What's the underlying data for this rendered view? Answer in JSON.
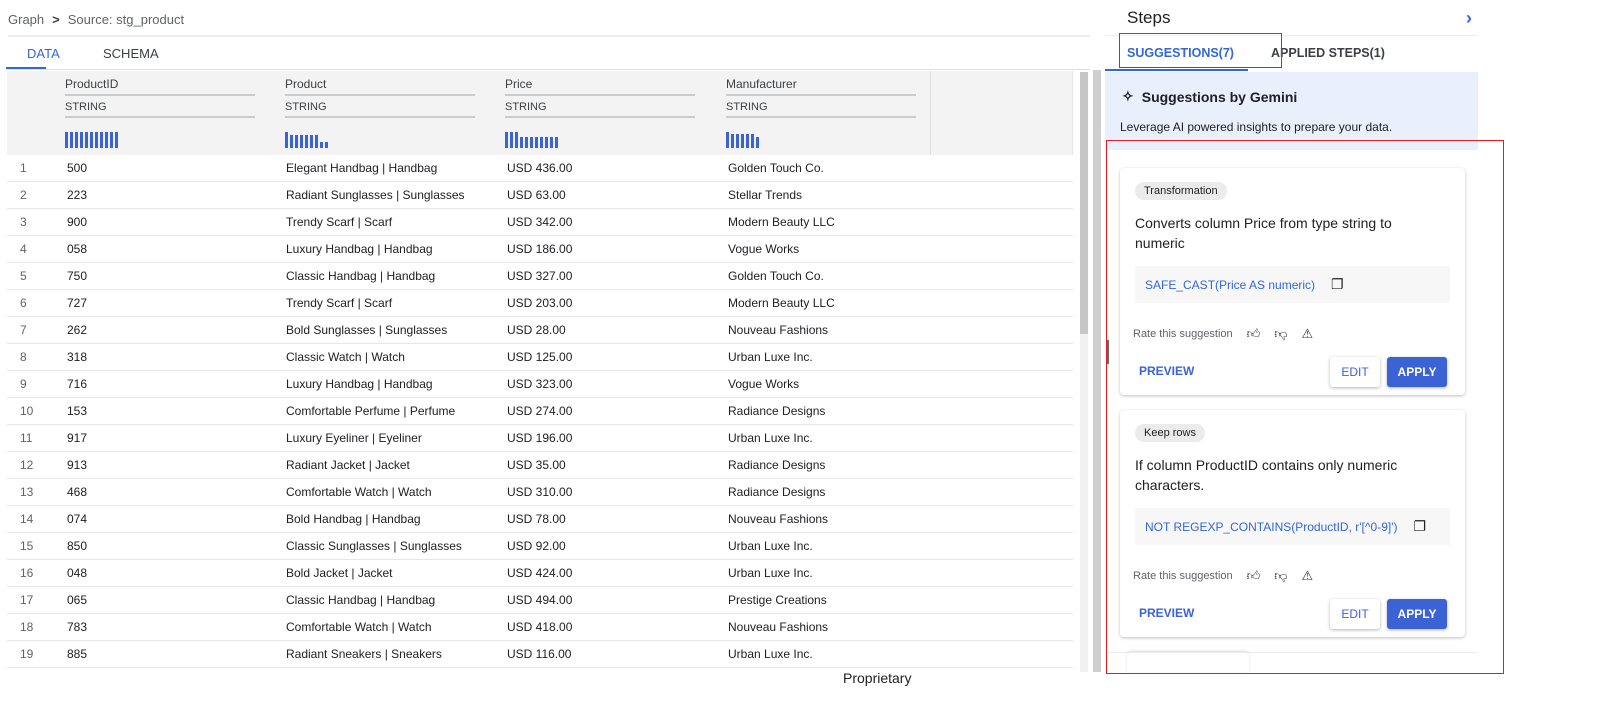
{
  "breadcrumb": {
    "root": "Graph",
    "current": "Source: stg_product"
  },
  "tabs": [
    {
      "label": "DATA",
      "active": true
    },
    {
      "label": "SCHEMA",
      "active": false
    }
  ],
  "columns": [
    {
      "name": "ProductID",
      "type": "STRING",
      "histogram": [
        1,
        1,
        1,
        1,
        1,
        1,
        1,
        1,
        1,
        1,
        1
      ]
    },
    {
      "name": "Product",
      "type": "STRING",
      "histogram": [
        1,
        0.8,
        0.8,
        0.8,
        0.8,
        0.8,
        0.8,
        0.4,
        0.4
      ]
    },
    {
      "name": "Price",
      "type": "STRING",
      "histogram": [
        1,
        1,
        1,
        0.7,
        0.7,
        0.7,
        0.7,
        0.7,
        0.7,
        0.7,
        0.7
      ]
    },
    {
      "name": "Manufacturer",
      "type": "STRING",
      "histogram": [
        1,
        0.85,
        0.85,
        0.85,
        0.85,
        0.85,
        0.7
      ]
    }
  ],
  "rows": [
    [
      "1",
      "500",
      "Elegant Handbag | Handbag",
      "USD 436.00",
      "Golden Touch Co."
    ],
    [
      "2",
      "223",
      "Radiant Sunglasses | Sunglasses",
      "USD 63.00",
      "Stellar Trends"
    ],
    [
      "3",
      "900",
      "Trendy Scarf | Scarf",
      "USD 342.00",
      "Modern Beauty LLC"
    ],
    [
      "4",
      "058",
      "Luxury Handbag | Handbag",
      "USD 186.00",
      "Vogue Works"
    ],
    [
      "5",
      "750",
      "Classic Handbag | Handbag",
      "USD 327.00",
      "Golden Touch Co."
    ],
    [
      "6",
      "727",
      "Trendy Scarf | Scarf",
      "USD 203.00",
      "Modern Beauty LLC"
    ],
    [
      "7",
      "262",
      "Bold Sunglasses | Sunglasses",
      "USD 28.00",
      "Nouveau Fashions"
    ],
    [
      "8",
      "318",
      "Classic Watch | Watch",
      "USD 125.00",
      "Urban Luxe Inc."
    ],
    [
      "9",
      "716",
      "Luxury Handbag | Handbag",
      "USD 323.00",
      "Vogue Works"
    ],
    [
      "10",
      "153",
      "Comfortable Perfume | Perfume",
      "USD 274.00",
      "Radiance Designs"
    ],
    [
      "11",
      "917",
      "Luxury Eyeliner | Eyeliner",
      "USD 196.00",
      "Urban Luxe Inc."
    ],
    [
      "12",
      "913",
      "Radiant Jacket | Jacket",
      "USD 35.00",
      "Radiance Designs"
    ],
    [
      "13",
      "468",
      "Comfortable Watch | Watch",
      "USD 310.00",
      "Radiance Designs"
    ],
    [
      "14",
      "074",
      "Bold Handbag | Handbag",
      "USD 78.00",
      "Nouveau Fashions"
    ],
    [
      "15",
      "850",
      "Classic Sunglasses | Sunglasses",
      "USD 92.00",
      "Urban Luxe Inc."
    ],
    [
      "16",
      "048",
      "Bold Jacket | Jacket",
      "USD 424.00",
      "Urban Luxe Inc."
    ],
    [
      "17",
      "065",
      "Classic Handbag | Handbag",
      "USD 494.00",
      "Prestige Creations"
    ],
    [
      "18",
      "783",
      "Comfortable Watch | Watch",
      "USD 418.00",
      "Nouveau Fashions"
    ],
    [
      "19",
      "885",
      "Radiant Sneakers | Sneakers",
      "USD 116.00",
      "Urban Luxe Inc."
    ]
  ],
  "steps": {
    "title": "Steps",
    "tabs": [
      {
        "label": "SUGGESTIONS(7)",
        "active": true
      },
      {
        "label": "APPLIED STEPS(1)",
        "active": false
      }
    ],
    "gemini_title": "Suggestions by Gemini",
    "gemini_subtitle": "Leverage AI powered insights to prepare your data.",
    "cards": [
      {
        "chip": "Transformation",
        "description": "Converts column Price from type string to numeric",
        "code": "SAFE_CAST(Price AS numeric)",
        "rate_label": "Rate this suggestion",
        "preview": "PREVIEW",
        "edit": "EDIT",
        "apply": "APPLY"
      },
      {
        "chip": "Keep rows",
        "description": "If column ProductID contains only numeric characters.",
        "code": "NOT REGEXP_CONTAINS(ProductID, r'[^0-9]')",
        "rate_label": "Rate this suggestion",
        "preview": "PREVIEW",
        "edit": "EDIT",
        "apply": "APPLY"
      }
    ]
  },
  "footer": "Proprietary",
  "colors": {
    "accent": "#3b63d6",
    "highlight_box": "#e02020",
    "gemini_bg": "#e9effb"
  }
}
